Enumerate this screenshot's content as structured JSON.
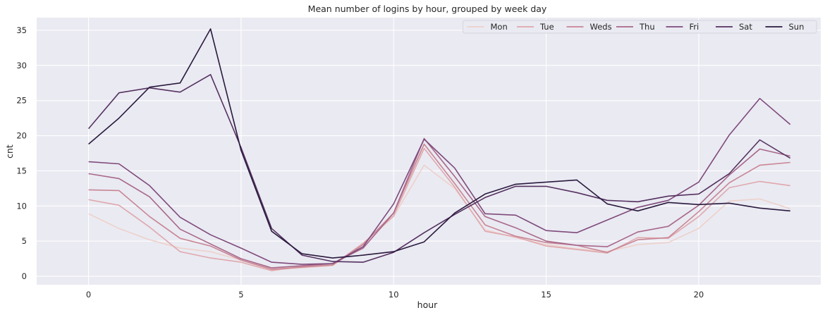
{
  "chart_data": {
    "type": "line",
    "title": "Mean number of logins by hour, grouped by week day",
    "xlabel": "hour",
    "ylabel": "cnt",
    "xlim": [
      -1.7,
      24.0
    ],
    "ylim": [
      -1.2,
      36.8
    ],
    "xticks": [
      0,
      5,
      10,
      15,
      20
    ],
    "yticks": [
      0,
      5,
      10,
      15,
      20,
      25,
      30,
      35
    ],
    "grid": true,
    "legend_position": "top-right",
    "x": [
      0,
      1,
      2,
      3,
      4,
      5,
      6,
      7,
      8,
      9,
      10,
      11,
      12,
      13,
      14,
      15,
      16,
      17,
      18,
      19,
      20,
      21,
      22,
      23
    ],
    "series": [
      {
        "name": "Mon",
        "color": "#edd1cb",
        "values": [
          8.9,
          6.8,
          5.2,
          4.0,
          3.5,
          2.3,
          0.9,
          1.2,
          1.5,
          4.5,
          8.5,
          15.8,
          12.5,
          6.6,
          5.5,
          4.5,
          3.9,
          3.5,
          4.5,
          4.8,
          6.8,
          10.7,
          11.0,
          9.6
        ]
      },
      {
        "name": "Tue",
        "color": "#dfa8ad",
        "values": [
          10.9,
          10.1,
          7.0,
          3.5,
          2.6,
          2.0,
          0.8,
          1.4,
          1.6,
          4.7,
          8.6,
          18.2,
          12.7,
          6.4,
          5.6,
          4.3,
          3.8,
          3.3,
          5.5,
          5.4,
          8.5,
          12.6,
          13.5,
          12.9
        ]
      },
      {
        "name": "Weds",
        "color": "#c88594",
        "values": [
          12.3,
          12.2,
          8.5,
          5.4,
          4.3,
          2.3,
          1.0,
          1.3,
          1.6,
          4.5,
          9.0,
          18.8,
          13.2,
          7.3,
          5.7,
          4.8,
          4.4,
          3.4,
          5.2,
          5.5,
          9.2,
          13.3,
          15.8,
          16.2
        ]
      },
      {
        "name": "Thu",
        "color": "#a8678a",
        "values": [
          14.6,
          13.9,
          11.3,
          6.7,
          4.6,
          2.5,
          1.2,
          1.5,
          1.8,
          4.0,
          9.0,
          19.6,
          14.2,
          8.5,
          6.9,
          5.0,
          4.4,
          4.2,
          6.3,
          7.1,
          10.1,
          14.4,
          18.1,
          17.1
        ]
      },
      {
        "name": "Fri",
        "color": "#7e4a7b",
        "values": [
          16.3,
          16.0,
          12.9,
          8.4,
          5.9,
          4.0,
          2.0,
          1.7,
          1.8,
          4.2,
          10.3,
          19.5,
          15.4,
          8.9,
          8.7,
          6.5,
          6.2,
          8.0,
          9.8,
          10.8,
          13.4,
          20.1,
          25.3,
          21.6
        ]
      },
      {
        "name": "Sat",
        "color": "#543160",
        "values": [
          21.0,
          26.1,
          26.8,
          26.2,
          28.7,
          18.3,
          6.8,
          3.0,
          2.1,
          2.0,
          3.4,
          6.2,
          8.8,
          11.2,
          12.8,
          12.8,
          11.9,
          10.8,
          10.6,
          11.4,
          11.7,
          14.6,
          19.4,
          16.8
        ]
      },
      {
        "name": "Sun",
        "color": "#2a1a3e",
        "values": [
          18.8,
          22.5,
          26.9,
          27.5,
          35.2,
          17.9,
          6.4,
          3.2,
          2.6,
          3.0,
          3.5,
          4.9,
          9.0,
          11.7,
          13.1,
          13.4,
          13.7,
          10.3,
          9.3,
          10.5,
          10.2,
          10.4,
          9.7,
          9.3
        ]
      }
    ]
  }
}
